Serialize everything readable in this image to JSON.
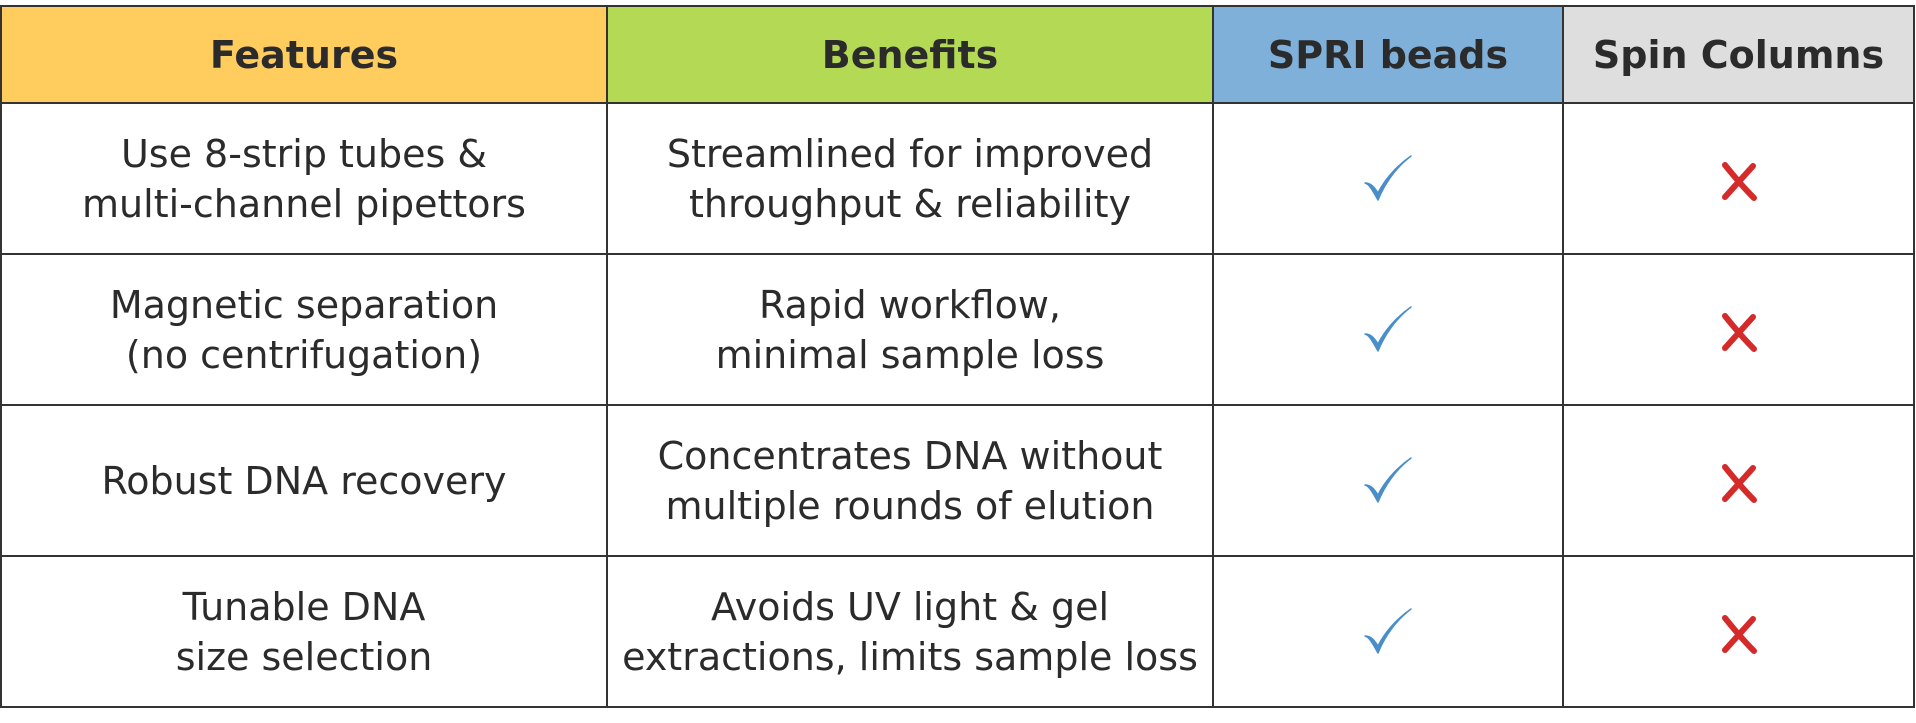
{
  "table": {
    "headers": [
      {
        "label": "Features",
        "color": "#FFCD5E"
      },
      {
        "label": "Benefits",
        "color": "#B4DA55"
      },
      {
        "label": "SPRI beads",
        "color": "#7FB0DA"
      },
      {
        "label": "Spin Columns",
        "color": "#DEDEDE"
      }
    ],
    "rows": [
      {
        "feature": "Use 8-strip tubes &\nmulti-channel pipettors",
        "benefit": "Streamlined for improved\nthroughput & reliability",
        "spri": "check-icon",
        "spin": "cross-icon"
      },
      {
        "feature": "Magnetic separation\n(no centrifugation)",
        "benefit": "Rapid workflow,\nminimal sample loss",
        "spri": "check-icon",
        "spin": "cross-icon"
      },
      {
        "feature": "Robust DNA recovery",
        "benefit": "Concentrates DNA without\nmultiple rounds of elution",
        "spri": "check-icon",
        "spin": "cross-icon"
      },
      {
        "feature": "Tunable DNA\nsize selection",
        "benefit": "Avoids UV light & gel\nextractions, limits sample loss",
        "spri": "check-icon",
        "spin": "cross-icon"
      }
    ]
  },
  "colors": {
    "check": "#4A8EC9",
    "cross": "#D42A2A",
    "border": "#333333",
    "text": "#2B2B2B"
  }
}
